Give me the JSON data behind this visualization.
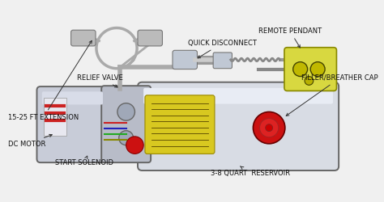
{
  "bg_color": "#f0f0f0",
  "labels": {
    "extension": "15-25 FT EXTENSION",
    "relief_valve": "RELIEF VALVE",
    "quick_disconnect": "QUICK DISCONNECT",
    "remote_pendant": "REMOTE PENDANT",
    "filler_cap": "FILLER/BREATHER CAP",
    "dc_motor": "DC MOTOR",
    "start_solenoid": "START SOLENOID",
    "reservoir": "3-8 QUART  RESERVOIR"
  },
  "label_fontsize": 6.0,
  "label_color": "#111111",
  "outline_color": "#777777",
  "reservoir_fill": "#d8dce4",
  "motor_fill": "#c8ccd8",
  "pump_fill": "#b8bcc8",
  "remote_fill": "#d8d840",
  "remote_border": "#888800",
  "red_fill": "#cc1111",
  "yellow_label": "#d8c820",
  "wire_gray": "#aaaaaa",
  "cable_gray": "#bbbbbb"
}
